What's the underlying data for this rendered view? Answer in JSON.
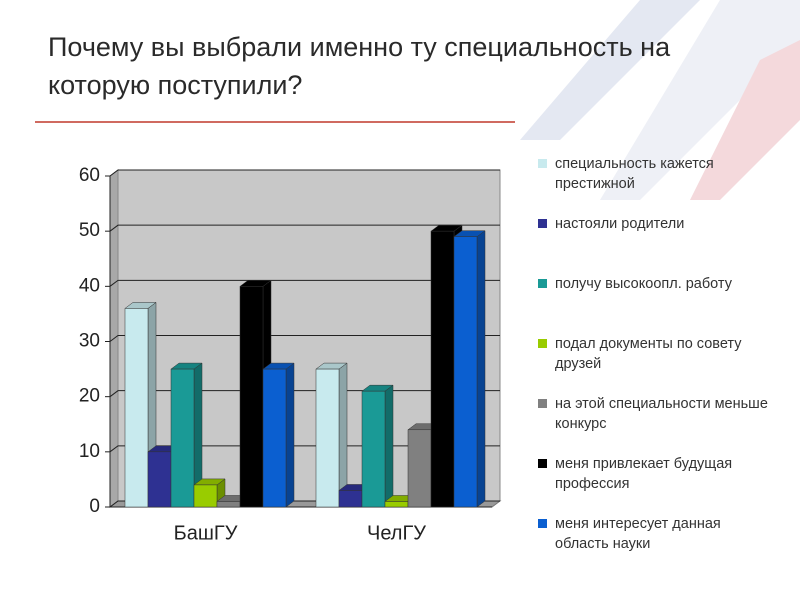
{
  "chart_data": {
    "type": "bar",
    "title": "Почему вы выбрали именно ту специальность на которую поступили?",
    "categories": [
      "БашГУ",
      "ЧелГУ"
    ],
    "series": [
      {
        "name": "специальность кажется престижной",
        "color": "#c8eaee",
        "values": [
          36,
          25
        ]
      },
      {
        "name": "настояли родители",
        "color": "#2e3192",
        "values": [
          10,
          3
        ]
      },
      {
        "name": "получу высокоопл. работу",
        "color": "#1a9a96",
        "values": [
          25,
          21
        ]
      },
      {
        "name": "подал документы по совету друзей",
        "color": "#99cc00",
        "values": [
          4,
          1
        ]
      },
      {
        "name": "на этой специальности меньше конкурс",
        "color": "#808080",
        "values": [
          1,
          14
        ]
      },
      {
        "name": "меня привлекает будущая профессия",
        "color": "#000000",
        "values": [
          40,
          50
        ]
      },
      {
        "name": "меня интересует данная область науки",
        "color": "#0b5fd0",
        "values": [
          25,
          49
        ]
      }
    ],
    "ylim": [
      0,
      60
    ],
    "yticks": [
      0,
      10,
      20,
      30,
      40,
      50,
      60
    ],
    "grid": true
  }
}
